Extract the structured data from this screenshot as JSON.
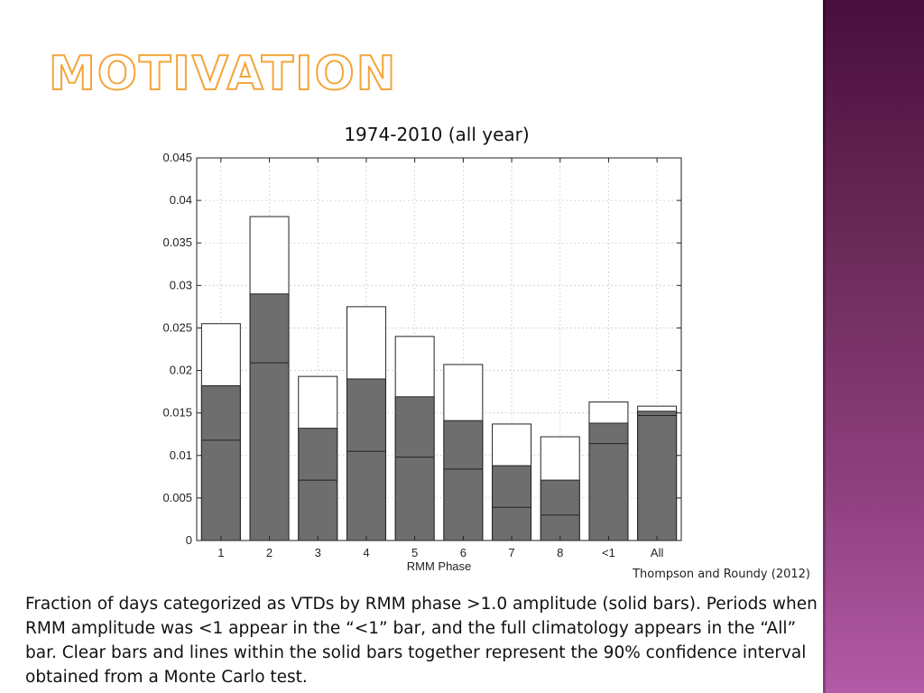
{
  "slide": {
    "title": "Motivation",
    "citation": "Thompson and Roundy (2012)",
    "caption": "Fraction of days categorized as VTDs by RMM phase >1.0 amplitude (solid bars). Periods when RMM amplitude was <1 appear in the “<1” bar, and the full climatology appears in the “All” bar. Clear bars and lines within the solid bars together represent the 90% confidence interval obtained from a Monte Carlo test.",
    "colors": {
      "accent": "#f3a53a",
      "side_band": "#7a3270",
      "solid_bar": "#6e6e6e"
    }
  },
  "chart_data": {
    "type": "bar",
    "title": "1974-2010 (all year)",
    "xlabel": "RMM Phase",
    "ylabel": "",
    "categories": [
      "1",
      "2",
      "3",
      "4",
      "5",
      "6",
      "7",
      "8",
      "<1",
      "All"
    ],
    "ylim": [
      0,
      0.045
    ],
    "yticks": [
      "0",
      "0.005",
      "0.01",
      "0.015",
      "0.02",
      "0.025",
      "0.03",
      "0.035",
      "0.04",
      "0.045"
    ],
    "grid": true,
    "series": [
      {
        "values": [
          0.0182,
          0.029,
          0.0132,
          0.019,
          0.0169,
          0.0141,
          0.0088,
          0.0071,
          0.0138,
          0.0152
        ]
      }
    ],
    "confidence_interval": {
      "lower": [
        0.0118,
        0.0209,
        0.0071,
        0.0105,
        0.0098,
        0.0084,
        0.0039,
        0.003,
        0.0114,
        0.0147
      ],
      "upper": [
        0.0255,
        0.0381,
        0.0193,
        0.0275,
        0.024,
        0.0207,
        0.0137,
        0.0122,
        0.0163,
        0.0158
      ]
    }
  }
}
